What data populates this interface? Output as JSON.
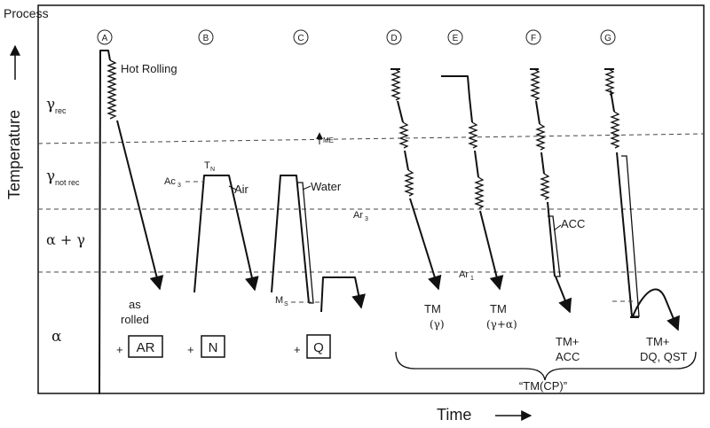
{
  "labels": {
    "process": "Process",
    "temperature": "Temperature",
    "time": "Time",
    "hot_rolling": "Hot Rolling",
    "air": "Air",
    "water": "Water",
    "acc": "ACC",
    "tn": "T",
    "tn_sub": "N",
    "ac3": "Ac",
    "ac3_sub": "3",
    "ar3": "Ar",
    "ar3_sub": "3",
    "ar1": "Ar",
    "ar1_sub": "1",
    "ms": "M",
    "ms_sub": "S",
    "me": "ME",
    "as_rolled_1": "as",
    "as_rolled_2": "rolled",
    "tm_cp": "“TM(CP)”"
  },
  "zones": {
    "gamma_rec": "γ",
    "gamma_rec_sub": "rec",
    "gamma_not_rec": "γ",
    "gamma_not_rec_sub": "not rec",
    "alpha_gamma": "α + γ",
    "alpha": "α"
  },
  "processes": [
    "A",
    "B",
    "C",
    "D",
    "E",
    "F",
    "G"
  ],
  "codes": {
    "ar": "AR",
    "n": "N",
    "q": "Q",
    "plus": "+"
  },
  "results": {
    "d_1": "TM",
    "d_2": "(γ)",
    "e_1": "TM",
    "e_2": "(γ+α)",
    "f_1": "TM+",
    "f_2": "ACC",
    "g_1": "TM+",
    "g_2": "DQ, QST"
  }
}
